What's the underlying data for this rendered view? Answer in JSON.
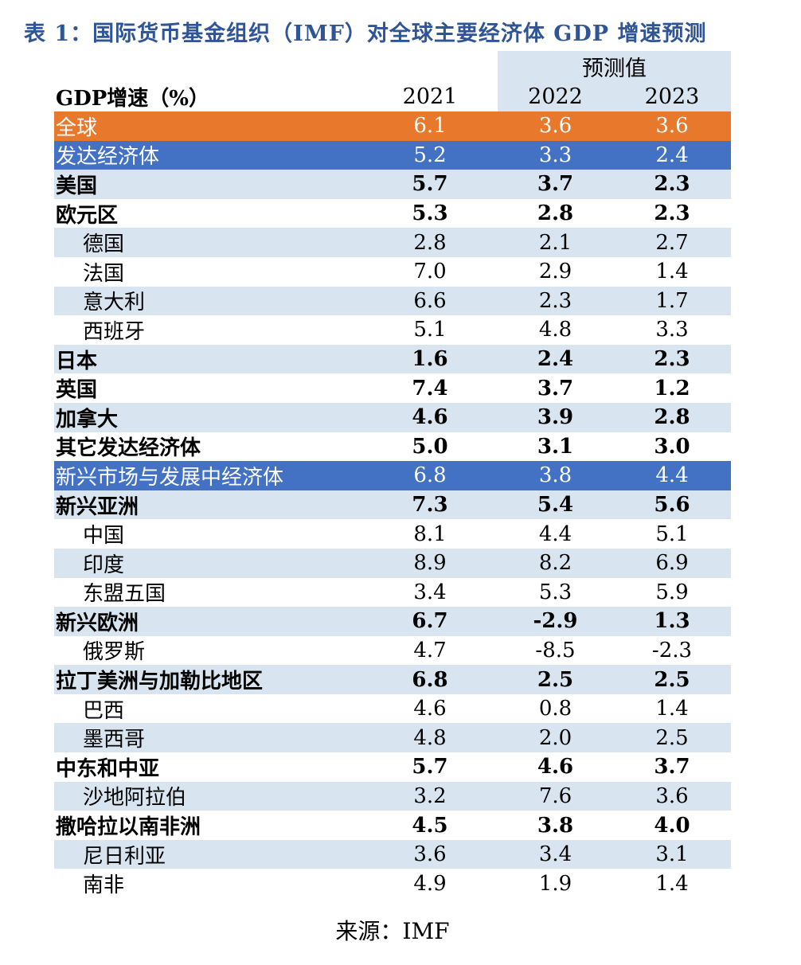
{
  "page": {
    "title": "表 1：国际货币基金组织（IMF）对全球主要经济体 GDP 增速预测",
    "source": "来源：IMF"
  },
  "colors": {
    "title_blue": "#2F5597",
    "row_orange": "#E8792C",
    "row_blue": "#4372C4",
    "band_light_blue": "#D8E5F1",
    "highlight_text": "#FFFFFF",
    "body_text": "#000000"
  },
  "chart_data": {
    "type": "table",
    "title": "表 1：国际货币基金组织（IMF）对全球主要经济体 GDP 增速预测",
    "row_header": "GDP增速（%）",
    "column_group_label": "预测值",
    "column_group_columns": [
      "2022",
      "2023"
    ],
    "columns": [
      "2021",
      "2022",
      "2023"
    ],
    "rows": [
      {
        "label": "全球",
        "values": [
          "6.1",
          "3.6",
          "3.6"
        ],
        "style": "orange",
        "bg": null
      },
      {
        "label": "发达经济体",
        "values": [
          "5.2",
          "3.3",
          "2.4"
        ],
        "style": "blue",
        "bg": null
      },
      {
        "label": "美国",
        "values": [
          "5.7",
          "3.7",
          "2.3"
        ],
        "style": "group",
        "bg": "light"
      },
      {
        "label": "欧元区",
        "values": [
          "5.3",
          "2.8",
          "2.3"
        ],
        "style": "group",
        "bg": "white"
      },
      {
        "label": "德国",
        "values": [
          "2.8",
          "2.1",
          "2.7"
        ],
        "style": "sub",
        "bg": "light"
      },
      {
        "label": "法国",
        "values": [
          "7.0",
          "2.9",
          "1.4"
        ],
        "style": "sub",
        "bg": "white"
      },
      {
        "label": "意大利",
        "values": [
          "6.6",
          "2.3",
          "1.7"
        ],
        "style": "sub",
        "bg": "light"
      },
      {
        "label": "西班牙",
        "values": [
          "5.1",
          "4.8",
          "3.3"
        ],
        "style": "sub",
        "bg": "white"
      },
      {
        "label": "日本",
        "values": [
          "1.6",
          "2.4",
          "2.3"
        ],
        "style": "group",
        "bg": "light"
      },
      {
        "label": "英国",
        "values": [
          "7.4",
          "3.7",
          "1.2"
        ],
        "style": "group",
        "bg": "white"
      },
      {
        "label": "加拿大",
        "values": [
          "4.6",
          "3.9",
          "2.8"
        ],
        "style": "group",
        "bg": "light"
      },
      {
        "label": "其它发达经济体",
        "values": [
          "5.0",
          "3.1",
          "3.0"
        ],
        "style": "group",
        "bg": "white"
      },
      {
        "label": "新兴市场与发展中经济体",
        "values": [
          "6.8",
          "3.8",
          "4.4"
        ],
        "style": "blue",
        "bg": null
      },
      {
        "label": "新兴亚洲",
        "values": [
          "7.3",
          "5.4",
          "5.6"
        ],
        "style": "group",
        "bg": "light"
      },
      {
        "label": "中国",
        "values": [
          "8.1",
          "4.4",
          "5.1"
        ],
        "style": "sub",
        "bg": "white"
      },
      {
        "label": "印度",
        "values": [
          "8.9",
          "8.2",
          "6.9"
        ],
        "style": "sub",
        "bg": "light"
      },
      {
        "label": "东盟五国",
        "values": [
          "3.4",
          "5.3",
          "5.9"
        ],
        "style": "sub",
        "bg": "white"
      },
      {
        "label": "新兴欧洲",
        "values": [
          "6.7",
          "-2.9",
          "1.3"
        ],
        "style": "group",
        "bg": "light"
      },
      {
        "label": "俄罗斯",
        "values": [
          "4.7",
          "-8.5",
          "-2.3"
        ],
        "style": "sub",
        "bg": "white"
      },
      {
        "label": "拉丁美洲与加勒比地区",
        "values": [
          "6.8",
          "2.5",
          "2.5"
        ],
        "style": "group",
        "bg": "light"
      },
      {
        "label": "巴西",
        "values": [
          "4.6",
          "0.8",
          "1.4"
        ],
        "style": "sub",
        "bg": "white"
      },
      {
        "label": "墨西哥",
        "values": [
          "4.8",
          "2.0",
          "2.5"
        ],
        "style": "sub",
        "bg": "light"
      },
      {
        "label": "中东和中亚",
        "values": [
          "5.7",
          "4.6",
          "3.7"
        ],
        "style": "group",
        "bg": "white"
      },
      {
        "label": "沙地阿拉伯",
        "values": [
          "3.2",
          "7.6",
          "3.6"
        ],
        "style": "sub",
        "bg": "light"
      },
      {
        "label": "撒哈拉以南非洲",
        "values": [
          "4.5",
          "3.8",
          "4.0"
        ],
        "style": "group",
        "bg": "white"
      },
      {
        "label": "尼日利亚",
        "values": [
          "3.6",
          "3.4",
          "3.1"
        ],
        "style": "sub",
        "bg": "light"
      },
      {
        "label": "南非",
        "values": [
          "4.9",
          "1.9",
          "1.4"
        ],
        "style": "sub",
        "bg": "white"
      }
    ],
    "source": "来源：IMF",
    "layout": {
      "legend": "none",
      "grid": "off",
      "zebra_banding": true
    }
  }
}
